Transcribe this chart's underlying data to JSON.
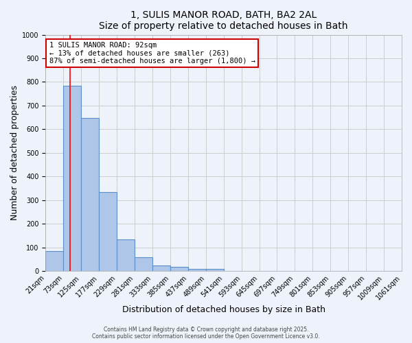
{
  "title_line1": "1, SULIS MANOR ROAD, BATH, BA2 2AL",
  "title_line2": "Size of property relative to detached houses in Bath",
  "xlabel": "Distribution of detached houses by size in Bath",
  "ylabel": "Number of detached properties",
  "bar_values": [
    83,
    783,
    648,
    335,
    135,
    58,
    22,
    17,
    9,
    9,
    0,
    0,
    0,
    0,
    0,
    0,
    0,
    0,
    0,
    0
  ],
  "bin_edges": [
    21,
    73,
    125,
    177,
    229,
    281,
    333,
    385,
    437,
    489,
    541,
    593,
    645,
    697,
    749,
    801,
    853,
    905,
    957,
    1009,
    1061
  ],
  "xtick_labels": [
    "21sqm",
    "73sqm",
    "125sqm",
    "177sqm",
    "229sqm",
    "281sqm",
    "333sqm",
    "385sqm",
    "437sqm",
    "489sqm",
    "541sqm",
    "593sqm",
    "645sqm",
    "697sqm",
    "749sqm",
    "801sqm",
    "853sqm",
    "905sqm",
    "957sqm",
    "1009sqm",
    "1061sqm"
  ],
  "ylim": [
    0,
    1000
  ],
  "yticks": [
    0,
    100,
    200,
    300,
    400,
    500,
    600,
    700,
    800,
    900,
    1000
  ],
  "bar_color": "#aec6e8",
  "bar_edge_color": "#5b8fc9",
  "bar_edge_width": 0.8,
  "grid_color": "#cccccc",
  "background_color": "#eef2fb",
  "red_line_x": 92,
  "annotation_text": "1 SULIS MANOR ROAD: 92sqm\n← 13% of detached houses are smaller (263)\n87% of semi-detached houses are larger (1,800) →",
  "annotation_box_facecolor": "#ffffff",
  "annotation_border_color": "#cc0000",
  "footer_line1": "Contains HM Land Registry data © Crown copyright and database right 2025.",
  "footer_line2": "Contains public sector information licensed under the Open Government Licence v3.0.",
  "title_fontsize": 10,
  "axis_label_fontsize": 9,
  "tick_fontsize": 7,
  "annotation_fontsize": 7.5,
  "footer_fontsize": 5.5
}
